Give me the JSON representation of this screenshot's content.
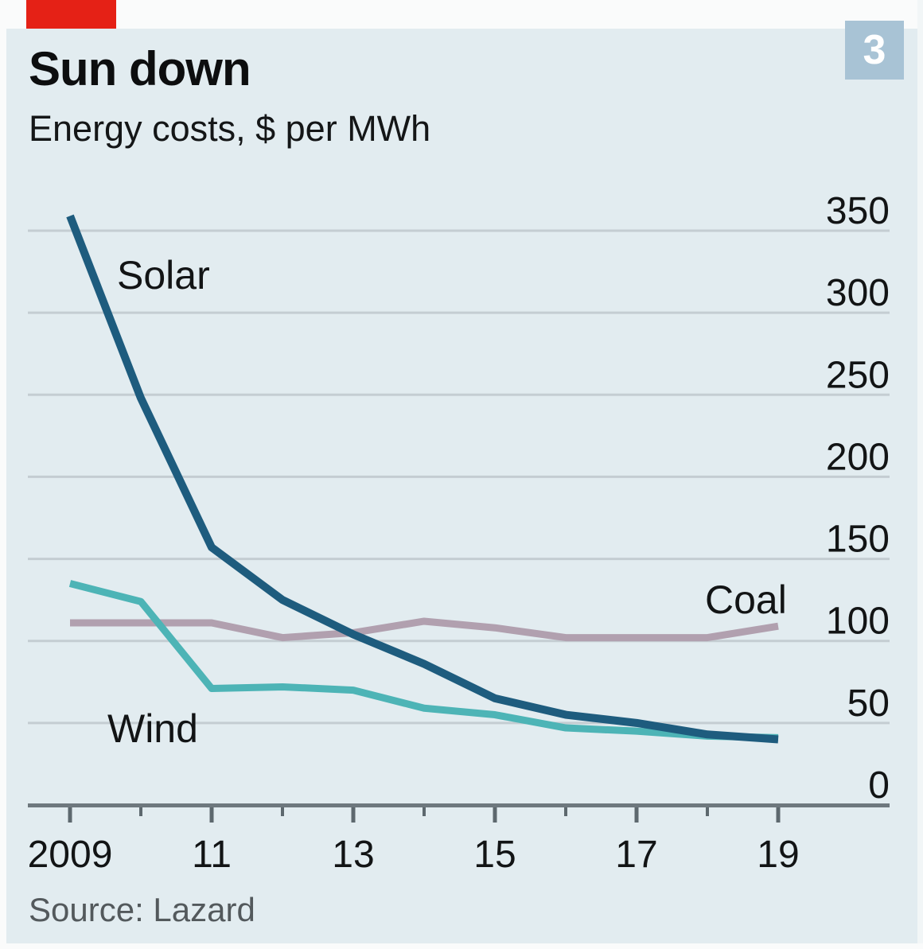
{
  "header": {
    "title": "Sun down",
    "subtitle": "Energy costs, $ per MWh",
    "page_badge": "3"
  },
  "footer": {
    "source": "Source: Lazard"
  },
  "colors": {
    "background": "#e2ecf0",
    "red_tab": "#e52116",
    "badge_bg": "#a8c3d5",
    "badge_text": "#ffffff",
    "gridline": "#c4cdd2",
    "axis": "#6e787e",
    "tick": "#5d686e",
    "label_text": "#121415",
    "source_text": "#53595c",
    "solar": "#1e5c7e",
    "wind": "#4db4b6",
    "coal": "#b1a0af"
  },
  "chart_data": {
    "type": "line",
    "title": "Sun down",
    "subtitle": "Energy costs, $ per MWh",
    "source": "Source: Lazard",
    "x": [
      2009,
      2010,
      2011,
      2012,
      2013,
      2014,
      2015,
      2016,
      2017,
      2018,
      2019
    ],
    "x_tick_labels": [
      {
        "year": 2009,
        "label": "2009"
      },
      {
        "year": 2011,
        "label": "11"
      },
      {
        "year": 2013,
        "label": "13"
      },
      {
        "year": 2015,
        "label": "15"
      },
      {
        "year": 2017,
        "label": "17"
      },
      {
        "year": 2019,
        "label": "19"
      }
    ],
    "y_ticks": [
      0,
      50,
      100,
      150,
      200,
      250,
      300,
      350
    ],
    "ylim": [
      0,
      350
    ],
    "grid": true,
    "legend": "inline-labels",
    "series": [
      {
        "name": "Solar",
        "color_key": "solar",
        "values": [
          359,
          248,
          157,
          125,
          104,
          86,
          65,
          55,
          50,
          43,
          40
        ]
      },
      {
        "name": "Wind",
        "color_key": "wind",
        "values": [
          135,
          124,
          71,
          72,
          70,
          59,
          55,
          47,
          45,
          42,
          41
        ]
      },
      {
        "name": "Coal",
        "color_key": "coal",
        "values": [
          111,
          111,
          111,
          102,
          105,
          112,
          108,
          102,
          102,
          102,
          109
        ]
      }
    ]
  }
}
